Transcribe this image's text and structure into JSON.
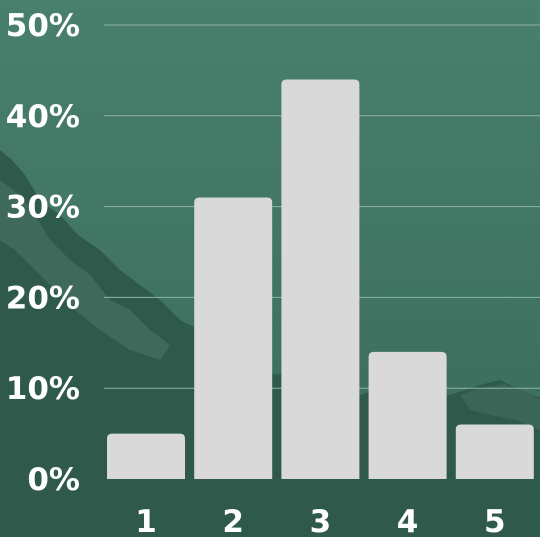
{
  "colors": {
    "background_top": "#487f6d",
    "background_bottom": "#3a6a59",
    "mountain": "#2f5a4b",
    "mountain_highlight": "#5e8a7b",
    "bar": "#d9d9d9",
    "gridline": "#8fb3a6",
    "text": "#ffffff"
  },
  "chart_data": {
    "type": "bar",
    "categories": [
      "1",
      "2",
      "3",
      "4",
      "5"
    ],
    "values": [
      5,
      31,
      44,
      14,
      6
    ],
    "ylim": [
      0,
      50
    ],
    "yticks": [
      0,
      10,
      20,
      30,
      40,
      50
    ],
    "ytick_labels": [
      "0%",
      "10%",
      "20%",
      "30%",
      "40%",
      "50%"
    ],
    "grid": true,
    "title": "",
    "xlabel": "",
    "ylabel": ""
  }
}
